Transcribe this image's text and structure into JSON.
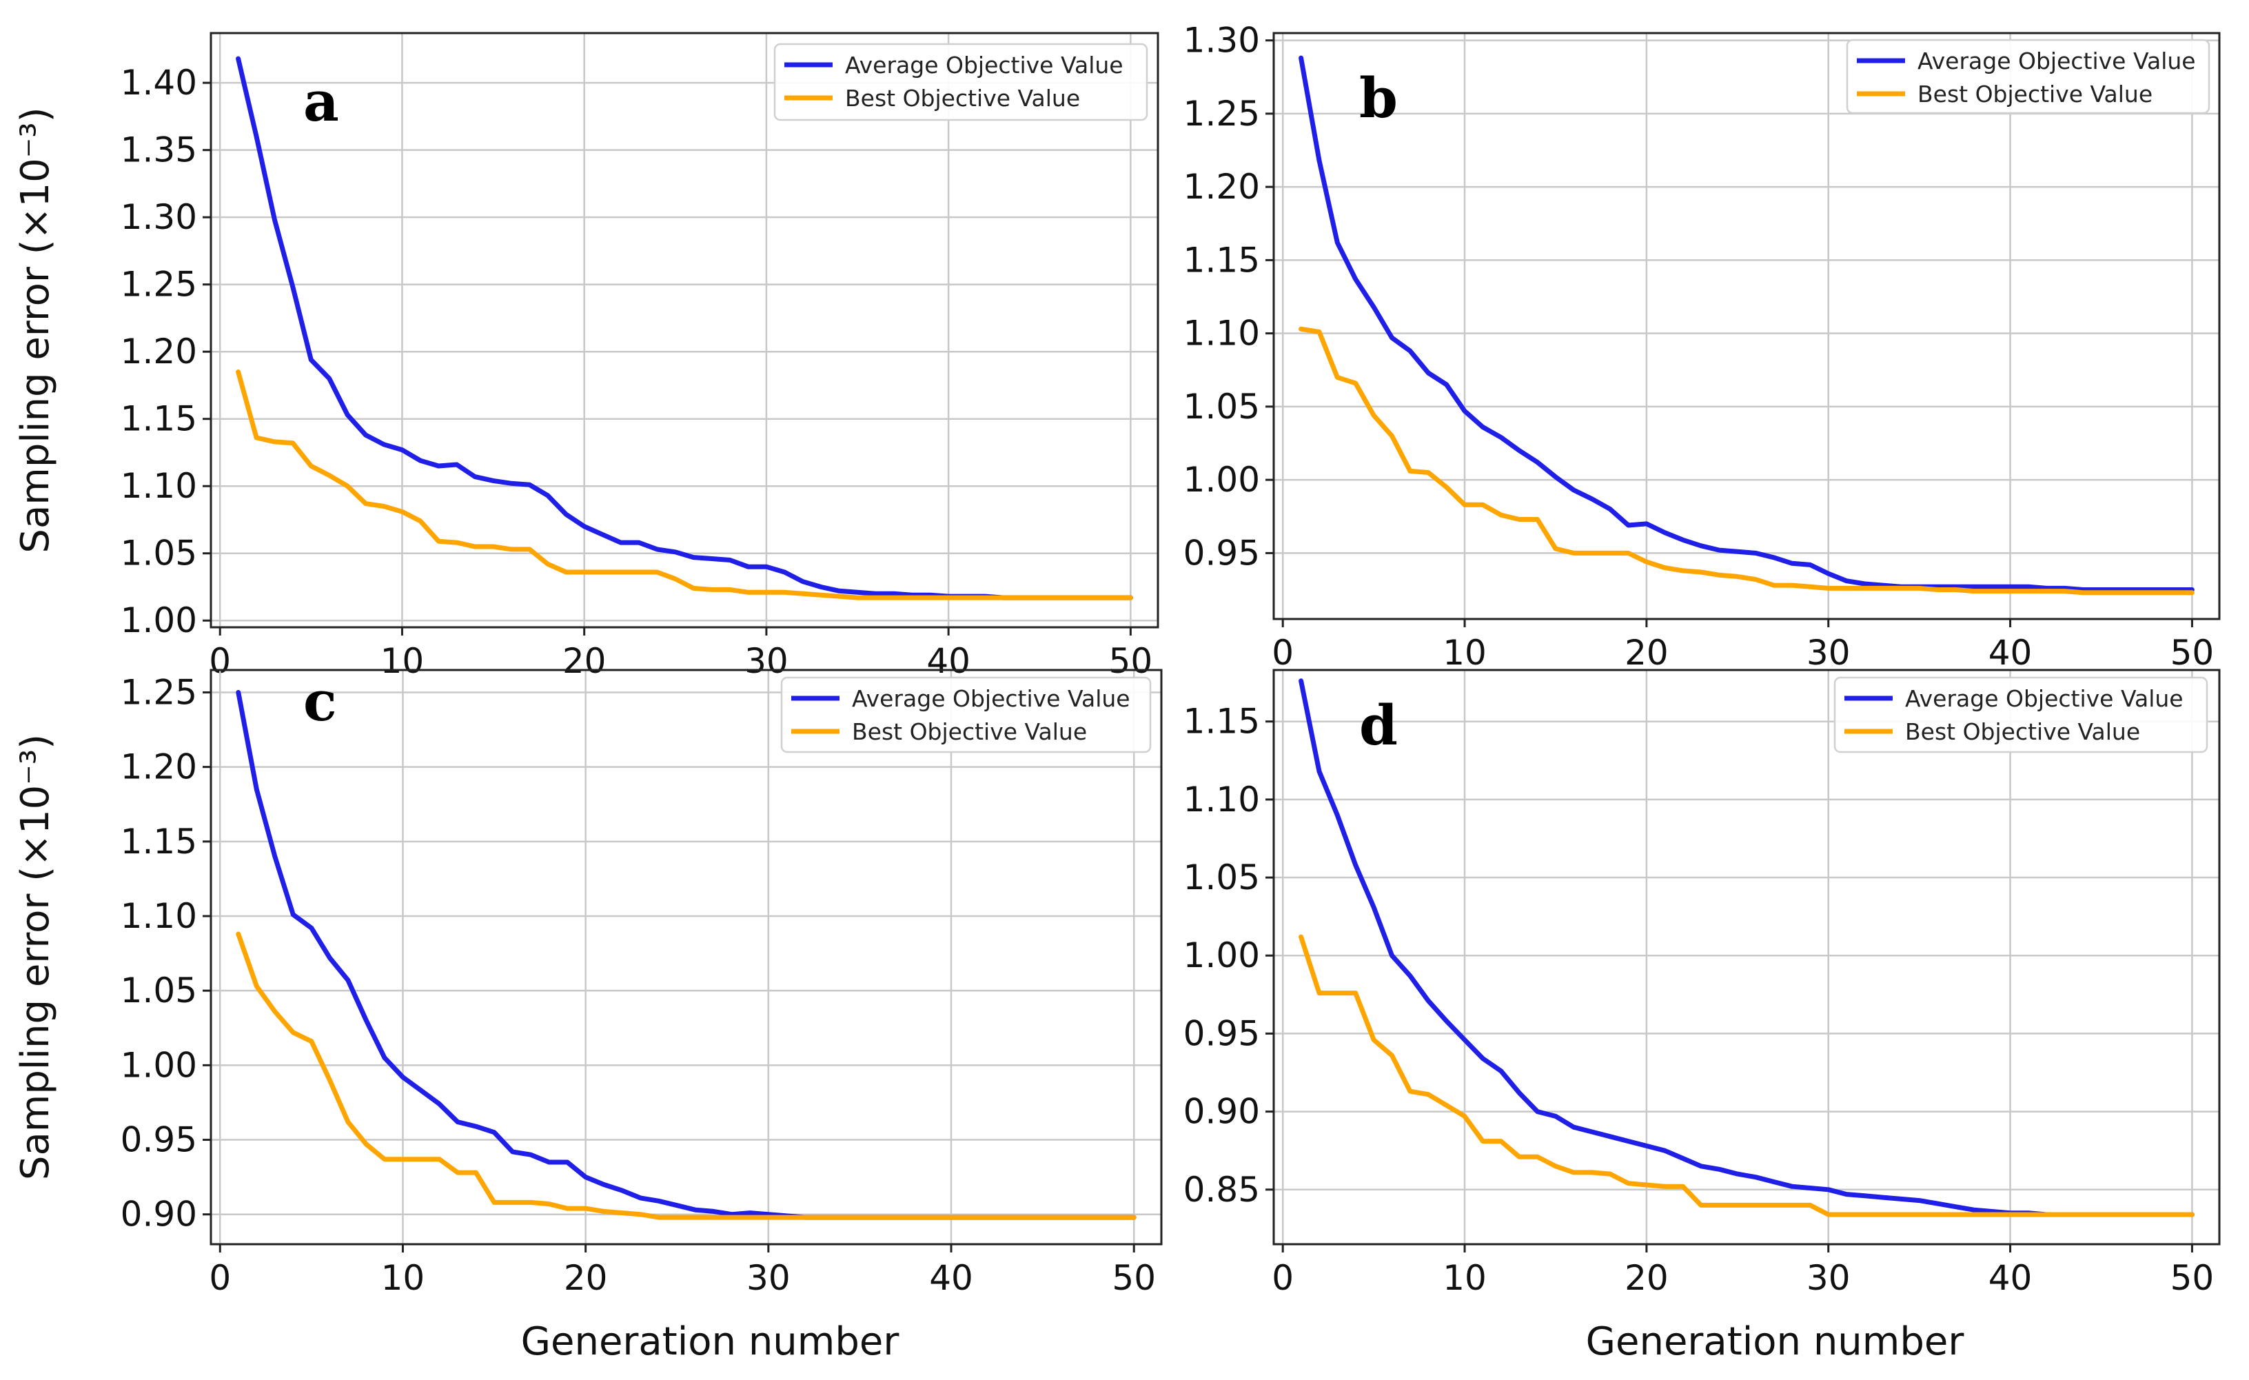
{
  "chart_data": [
    {
      "type": "line",
      "panel": "a",
      "title": "",
      "xlabel": "",
      "ylabel": "Sampling error (×10⁻³)",
      "xlim": [
        -0.5,
        51.5
      ],
      "ylim": [
        0.995,
        1.437
      ],
      "xticks": [
        0,
        10,
        20,
        30,
        40,
        50
      ],
      "xtick_labels": [
        "0",
        "10",
        "20",
        "30",
        "40",
        "50"
      ],
      "yticks": [
        1.0,
        1.05,
        1.1,
        1.15,
        1.2,
        1.25,
        1.3,
        1.35,
        1.4
      ],
      "ytick_labels": [
        "1.00",
        "1.05",
        "1.10",
        "1.15",
        "1.20",
        "1.25",
        "1.30",
        "1.35",
        "1.40"
      ],
      "grid": true,
      "legend_position": "top-right",
      "x": [
        1,
        2,
        3,
        4,
        5,
        6,
        7,
        8,
        9,
        10,
        11,
        12,
        13,
        14,
        15,
        16,
        17,
        18,
        19,
        20,
        21,
        22,
        23,
        24,
        25,
        26,
        27,
        28,
        29,
        30,
        31,
        32,
        33,
        34,
        35,
        36,
        37,
        38,
        39,
        40,
        41,
        42,
        43,
        44,
        45,
        46,
        47,
        48,
        49,
        50
      ],
      "series": [
        {
          "name": "Average Objective Value",
          "color": "#1f1fe8",
          "values": [
            1.418,
            1.36,
            1.298,
            1.248,
            1.194,
            1.18,
            1.153,
            1.138,
            1.131,
            1.127,
            1.119,
            1.115,
            1.116,
            1.107,
            1.104,
            1.102,
            1.101,
            1.093,
            1.079,
            1.07,
            1.064,
            1.058,
            1.058,
            1.053,
            1.051,
            1.047,
            1.046,
            1.045,
            1.04,
            1.04,
            1.036,
            1.029,
            1.025,
            1.022,
            1.021,
            1.02,
            1.02,
            1.019,
            1.019,
            1.018,
            1.018,
            1.018,
            1.017,
            1.017,
            1.017,
            1.017,
            1.017,
            1.017,
            1.017,
            1.017
          ]
        },
        {
          "name": "Best Objective Value",
          "color": "#ffa500",
          "values": [
            1.185,
            1.136,
            1.133,
            1.132,
            1.115,
            1.108,
            1.1,
            1.087,
            1.085,
            1.081,
            1.074,
            1.059,
            1.058,
            1.055,
            1.055,
            1.053,
            1.053,
            1.042,
            1.036,
            1.036,
            1.036,
            1.036,
            1.036,
            1.036,
            1.031,
            1.024,
            1.023,
            1.023,
            1.021,
            1.021,
            1.021,
            1.02,
            1.019,
            1.018,
            1.017,
            1.017,
            1.017,
            1.017,
            1.017,
            1.017,
            1.017,
            1.017,
            1.017,
            1.017,
            1.017,
            1.017,
            1.017,
            1.017,
            1.017,
            1.017
          ]
        }
      ]
    },
    {
      "type": "line",
      "panel": "b",
      "title": "",
      "xlabel": "",
      "ylabel": "",
      "xlim": [
        -0.5,
        51.5
      ],
      "ylim": [
        0.905,
        1.305
      ],
      "xticks": [
        0,
        10,
        20,
        30,
        40,
        50
      ],
      "xtick_labels": [
        "0",
        "10",
        "20",
        "30",
        "40",
        "50"
      ],
      "yticks": [
        0.95,
        1.0,
        1.05,
        1.1,
        1.15,
        1.2,
        1.25,
        1.3
      ],
      "ytick_labels": [
        "0.95",
        "1.00",
        "1.05",
        "1.10",
        "1.15",
        "1.20",
        "1.25",
        "1.30"
      ],
      "grid": true,
      "legend_position": "top-right",
      "x": [
        1,
        2,
        3,
        4,
        5,
        6,
        7,
        8,
        9,
        10,
        11,
        12,
        13,
        14,
        15,
        16,
        17,
        18,
        19,
        20,
        21,
        22,
        23,
        24,
        25,
        26,
        27,
        28,
        29,
        30,
        31,
        32,
        33,
        34,
        35,
        36,
        37,
        38,
        39,
        40,
        41,
        42,
        43,
        44,
        45,
        46,
        47,
        48,
        49,
        50
      ],
      "series": [
        {
          "name": "Average Objective Value",
          "color": "#1f1fe8",
          "values": [
            1.288,
            1.218,
            1.162,
            1.137,
            1.118,
            1.097,
            1.088,
            1.073,
            1.065,
            1.047,
            1.036,
            1.029,
            1.02,
            1.012,
            1.002,
            0.993,
            0.987,
            0.98,
            0.969,
            0.97,
            0.964,
            0.959,
            0.955,
            0.952,
            0.951,
            0.95,
            0.947,
            0.943,
            0.942,
            0.936,
            0.931,
            0.929,
            0.928,
            0.927,
            0.927,
            0.927,
            0.927,
            0.927,
            0.927,
            0.927,
            0.927,
            0.926,
            0.926,
            0.925,
            0.925,
            0.925,
            0.925,
            0.925,
            0.925,
            0.925
          ]
        },
        {
          "name": "Best Objective Value",
          "color": "#ffa500",
          "values": [
            1.103,
            1.101,
            1.07,
            1.066,
            1.044,
            1.03,
            1.006,
            1.005,
            0.995,
            0.983,
            0.983,
            0.976,
            0.973,
            0.973,
            0.953,
            0.95,
            0.95,
            0.95,
            0.95,
            0.944,
            0.94,
            0.938,
            0.937,
            0.935,
            0.934,
            0.932,
            0.928,
            0.928,
            0.927,
            0.926,
            0.926,
            0.926,
            0.926,
            0.926,
            0.926,
            0.925,
            0.925,
            0.924,
            0.924,
            0.924,
            0.924,
            0.924,
            0.924,
            0.923,
            0.923,
            0.923,
            0.923,
            0.923,
            0.923,
            0.923
          ]
        }
      ]
    },
    {
      "type": "line",
      "panel": "c",
      "title": "",
      "xlabel": "",
      "ylabel": "Sampling error (×10⁻³)",
      "xlim": [
        -0.5,
        51.5
      ],
      "ylim": [
        0.88,
        1.265
      ],
      "xticks": [
        0,
        10,
        20,
        30,
        40,
        50
      ],
      "xtick_labels": [
        "0",
        "10",
        "20",
        "30",
        "40",
        "50"
      ],
      "yticks": [
        0.9,
        0.95,
        1.0,
        1.05,
        1.1,
        1.15,
        1.2,
        1.25
      ],
      "ytick_labels": [
        "0.90",
        "0.95",
        "1.00",
        "1.05",
        "1.10",
        "1.15",
        "1.20",
        "1.25"
      ],
      "grid": true,
      "legend_position": "top-right",
      "x": [
        1,
        2,
        3,
        4,
        5,
        6,
        7,
        8,
        9,
        10,
        11,
        12,
        13,
        14,
        15,
        16,
        17,
        18,
        19,
        20,
        21,
        22,
        23,
        24,
        25,
        26,
        27,
        28,
        29,
        30,
        31,
        32,
        33,
        34,
        35,
        36,
        37,
        38,
        39,
        40,
        41,
        42,
        43,
        44,
        45,
        46,
        47,
        48,
        49,
        50
      ],
      "series": [
        {
          "name": "Average Objective Value",
          "color": "#1f1fe8",
          "values": [
            1.25,
            1.185,
            1.14,
            1.101,
            1.092,
            1.072,
            1.057,
            1.03,
            1.005,
            0.992,
            0.983,
            0.974,
            0.962,
            0.959,
            0.955,
            0.942,
            0.94,
            0.935,
            0.935,
            0.925,
            0.92,
            0.916,
            0.911,
            0.909,
            0.906,
            0.903,
            0.902,
            0.9,
            0.901,
            0.9,
            0.899,
            0.898,
            0.898,
            0.898,
            0.898,
            0.898,
            0.898,
            0.898,
            0.898,
            0.898,
            0.898,
            0.898,
            0.898,
            0.898,
            0.898,
            0.898,
            0.898,
            0.898,
            0.898,
            0.898
          ]
        },
        {
          "name": "Best Objective Value",
          "color": "#ffa500",
          "values": [
            1.088,
            1.053,
            1.036,
            1.022,
            1.016,
            0.99,
            0.962,
            0.947,
            0.937,
            0.937,
            0.937,
            0.937,
            0.928,
            0.928,
            0.908,
            0.908,
            0.908,
            0.907,
            0.904,
            0.904,
            0.902,
            0.901,
            0.9,
            0.898,
            0.898,
            0.898,
            0.898,
            0.898,
            0.898,
            0.898,
            0.898,
            0.898,
            0.898,
            0.898,
            0.898,
            0.898,
            0.898,
            0.898,
            0.898,
            0.898,
            0.898,
            0.898,
            0.898,
            0.898,
            0.898,
            0.898,
            0.898,
            0.898,
            0.898,
            0.898
          ]
        }
      ]
    },
    {
      "type": "line",
      "panel": "d",
      "title": "",
      "xlabel": "Generation number",
      "ylabel": "",
      "xlim": [
        -0.5,
        51.5
      ],
      "ylim": [
        0.815,
        1.183
      ],
      "xticks": [
        0,
        10,
        20,
        30,
        40,
        50
      ],
      "xtick_labels": [
        "0",
        "10",
        "20",
        "30",
        "40",
        "50"
      ],
      "yticks": [
        0.85,
        0.9,
        0.95,
        1.0,
        1.05,
        1.1,
        1.15
      ],
      "ytick_labels": [
        "0.85",
        "0.90",
        "0.95",
        "1.00",
        "1.05",
        "1.10",
        "1.15"
      ],
      "grid": true,
      "legend_position": "top-right",
      "x": [
        1,
        2,
        3,
        4,
        5,
        6,
        7,
        8,
        9,
        10,
        11,
        12,
        13,
        14,
        15,
        16,
        17,
        18,
        19,
        20,
        21,
        22,
        23,
        24,
        25,
        26,
        27,
        28,
        29,
        30,
        31,
        32,
        33,
        34,
        35,
        36,
        37,
        38,
        39,
        40,
        41,
        42,
        43,
        44,
        45,
        46,
        47,
        48,
        49,
        50
      ],
      "series": [
        {
          "name": "Average Objective Value",
          "color": "#1f1fe8",
          "values": [
            1.176,
            1.118,
            1.09,
            1.058,
            1.031,
            1.0,
            0.987,
            0.971,
            0.958,
            0.946,
            0.934,
            0.926,
            0.912,
            0.9,
            0.897,
            0.89,
            0.887,
            0.884,
            0.881,
            0.878,
            0.875,
            0.87,
            0.865,
            0.863,
            0.86,
            0.858,
            0.855,
            0.852,
            0.851,
            0.85,
            0.847,
            0.846,
            0.845,
            0.844,
            0.843,
            0.841,
            0.839,
            0.837,
            0.836,
            0.835,
            0.835,
            0.834,
            0.834,
            0.834,
            0.834,
            0.834,
            0.834,
            0.834,
            0.834,
            0.834
          ]
        },
        {
          "name": "Best Objective Value",
          "color": "#ffa500",
          "values": [
            1.012,
            0.976,
            0.976,
            0.976,
            0.946,
            0.936,
            0.913,
            0.911,
            0.904,
            0.897,
            0.881,
            0.881,
            0.871,
            0.871,
            0.865,
            0.861,
            0.861,
            0.86,
            0.854,
            0.853,
            0.852,
            0.852,
            0.84,
            0.84,
            0.84,
            0.84,
            0.84,
            0.84,
            0.84,
            0.834,
            0.834,
            0.834,
            0.834,
            0.834,
            0.834,
            0.834,
            0.834,
            0.834,
            0.834,
            0.834,
            0.834,
            0.834,
            0.834,
            0.834,
            0.834,
            0.834,
            0.834,
            0.834,
            0.834,
            0.834
          ]
        }
      ]
    }
  ],
  "shared_xlabels": [
    "Generation number",
    "Generation number"
  ]
}
